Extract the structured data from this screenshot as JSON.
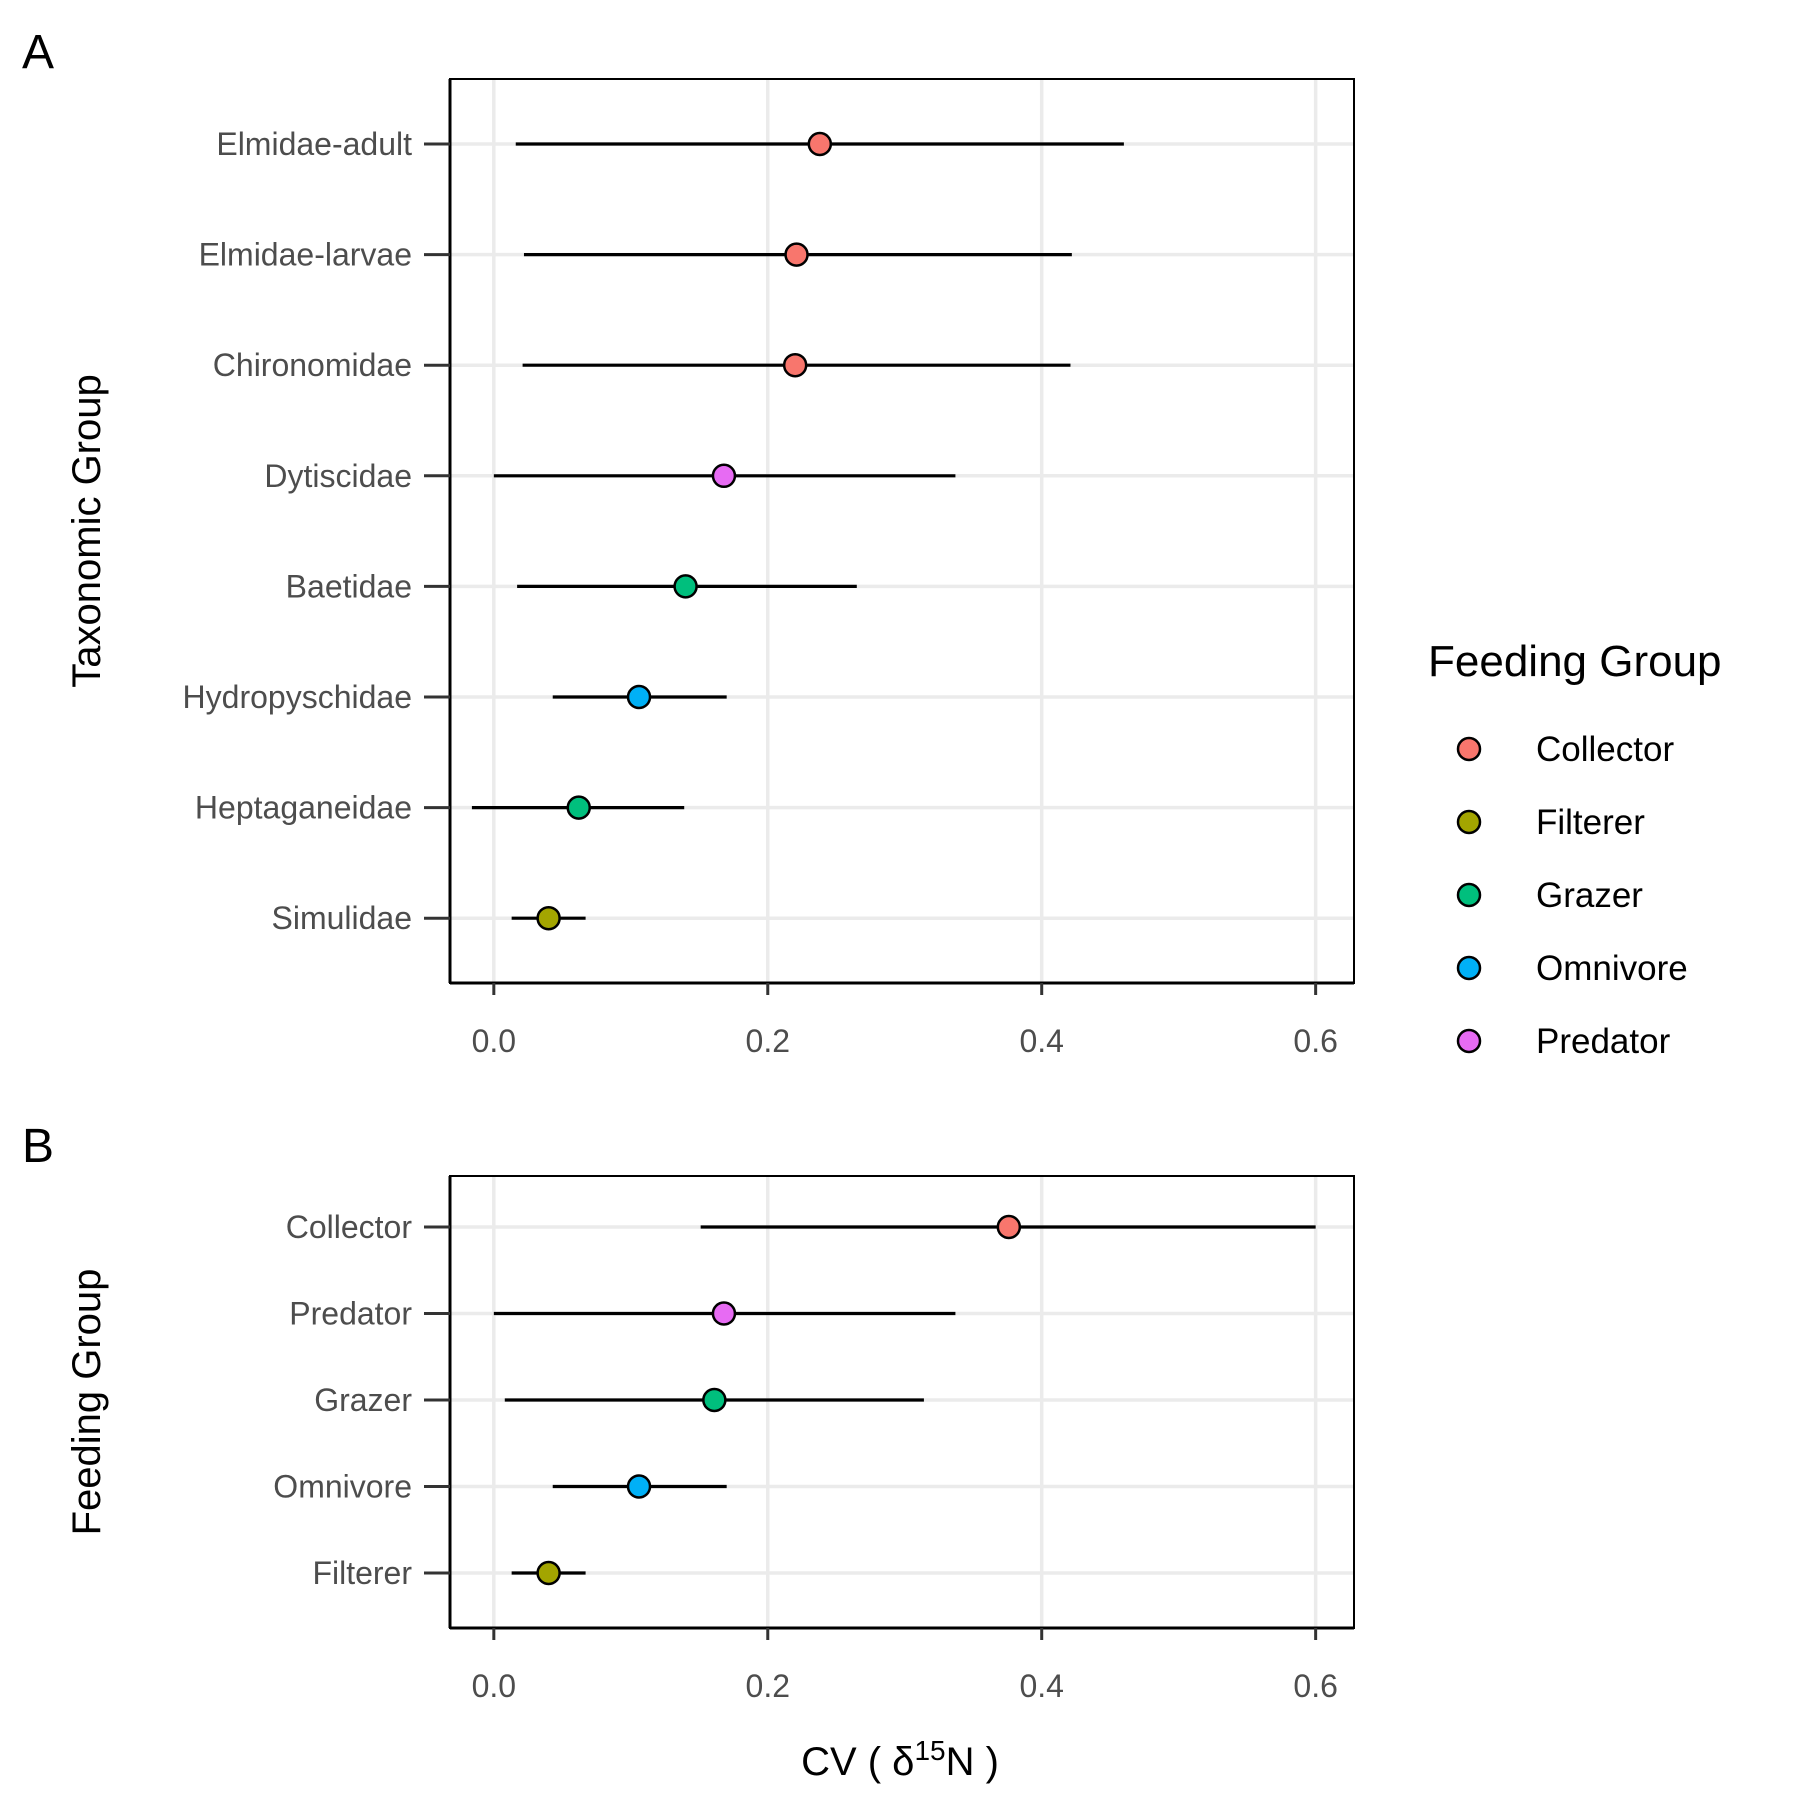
{
  "colors": {
    "Collector": "#F8766D",
    "Filterer": "#A3A500",
    "Grazer": "#00BF7D",
    "Omnivore": "#00B0F6",
    "Predator": "#E76BF3"
  },
  "legend": {
    "title": "Feeding Group",
    "items": [
      "Collector",
      "Filterer",
      "Grazer",
      "Omnivore",
      "Predator"
    ]
  },
  "chart_data": [
    {
      "panel": "A",
      "type": "scatter",
      "xlabel": "",
      "ylabel": "Taxonomic Group",
      "xlim": [
        -0.032,
        0.628
      ],
      "xticks": [
        0.0,
        0.2,
        0.4,
        0.6
      ],
      "xtick_labels": [
        "0.0",
        "0.2",
        "0.4",
        "0.6"
      ],
      "grid": true,
      "categories": [
        "Elmidae-adult",
        "Elmidae-larvae",
        "Chironomidae",
        "Dytiscidae",
        "Baetidae",
        "Hydropyschidae",
        "Heptaganeidae",
        "Simulidae"
      ],
      "values": [
        0.238,
        0.221,
        0.22,
        0.168,
        0.14,
        0.106,
        0.062,
        0.04
      ],
      "lower": [
        0.016,
        0.022,
        0.021,
        0.0,
        0.017,
        0.043,
        -0.016,
        0.013
      ],
      "upper": [
        0.46,
        0.422,
        0.421,
        0.337,
        0.265,
        0.17,
        0.139,
        0.067
      ],
      "groups": [
        "Collector",
        "Collector",
        "Collector",
        "Predator",
        "Grazer",
        "Omnivore",
        "Grazer",
        "Filterer"
      ]
    },
    {
      "panel": "B",
      "type": "scatter",
      "xlabel": "CV ( δ15N )",
      "ylabel": "Feeding Group",
      "xlim": [
        -0.032,
        0.628
      ],
      "xticks": [
        0.0,
        0.2,
        0.4,
        0.6
      ],
      "xtick_labels": [
        "0.0",
        "0.2",
        "0.4",
        "0.6"
      ],
      "grid": true,
      "categories": [
        "Collector",
        "Predator",
        "Grazer",
        "Omnivore",
        "Filterer"
      ],
      "values": [
        0.376,
        0.168,
        0.161,
        0.106,
        0.04
      ],
      "lower": [
        0.151,
        0.0,
        0.008,
        0.043,
        0.013
      ],
      "upper": [
        0.6,
        0.337,
        0.314,
        0.17,
        0.067
      ],
      "groups": [
        "Collector",
        "Predator",
        "Grazer",
        "Omnivore",
        "Filterer"
      ]
    }
  ],
  "xlabel_parts": {
    "prefix": "CV ( δ",
    "superscript": "15",
    "suffix": "N )"
  }
}
